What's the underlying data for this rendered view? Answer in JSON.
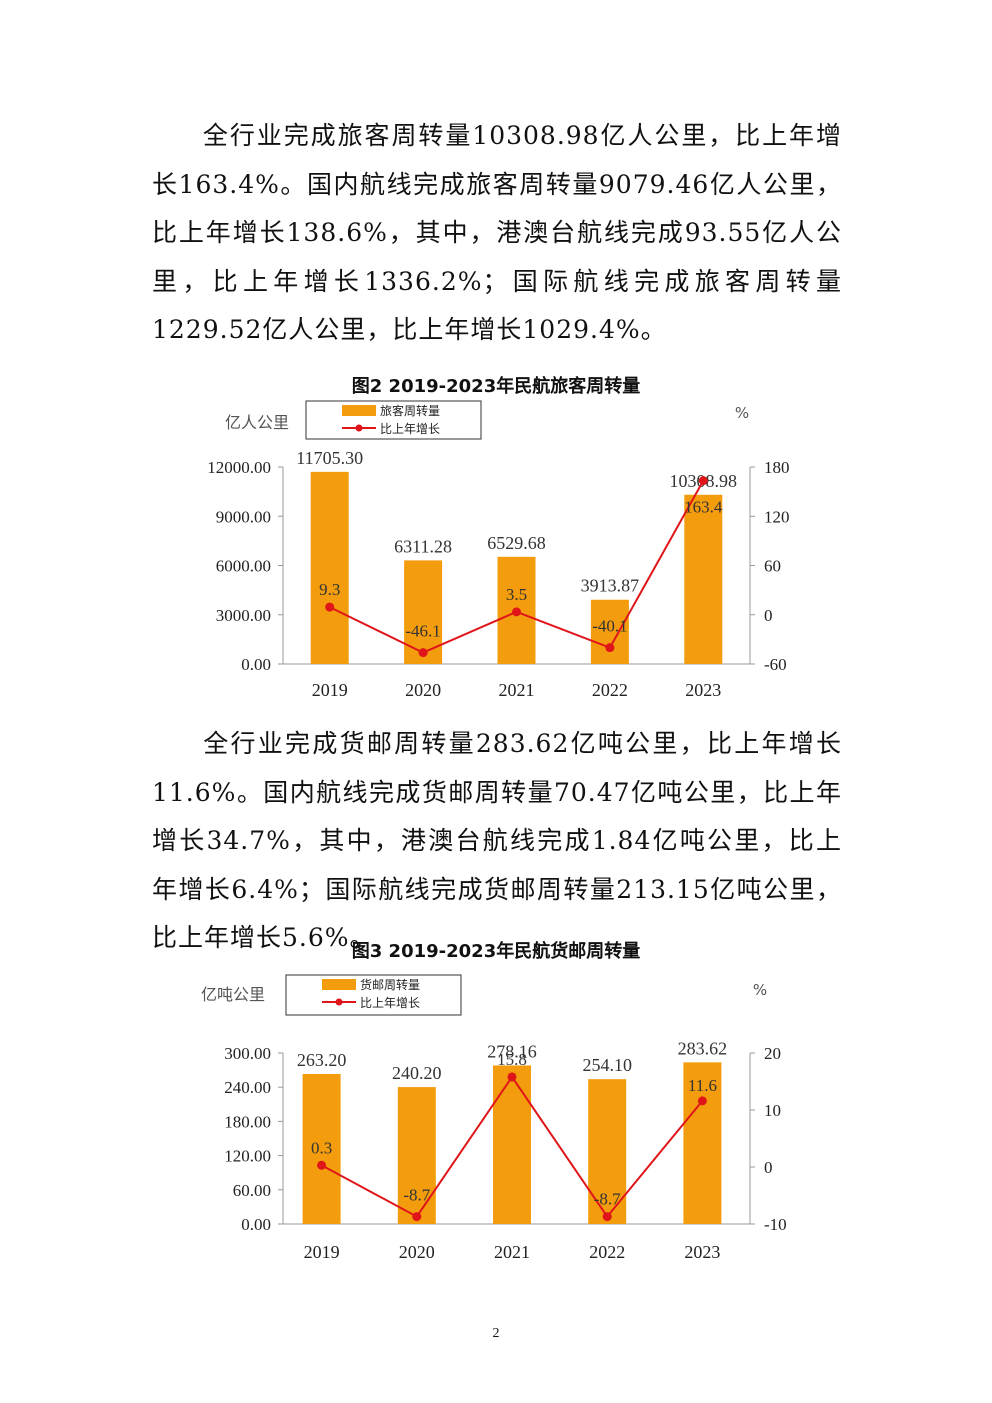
{
  "paragraphs": [
    "全行业完成旅客周转量10308.98亿人公里，比上年增长163.4%。国内航线完成旅客周转量9079.46亿人公里，比上年增长138.6%，其中，港澳台航线完成93.55亿人公里，比上年增长1336.2%；国际航线完成旅客周转量1229.52亿人公里，比上年增长1029.4%。",
    "全行业完成货邮周转量283.62亿吨公里，比上年增长11.6%。国内航线完成货邮周转量70.47亿吨公里，比上年增长34.7%，其中，港澳台航线完成1.84亿吨公里，比上年增长6.4%；国际航线完成货邮周转量213.15亿吨公里，比上年增长5.6%。"
  ],
  "page_number": "2",
  "colors": {
    "bar": "#F39C0D",
    "line": "#E0151A"
  },
  "chart_data": [
    {
      "type": "bar",
      "title": "图2  2019-2023年民航旅客周转量",
      "categories": [
        "2019",
        "2020",
        "2021",
        "2022",
        "2023"
      ],
      "ylabel": "亿人公里",
      "y2label": "%",
      "ylim": [
        0,
        12000
      ],
      "yticks": [
        "12000.00",
        "9000.00",
        "6000.00",
        "3000.00",
        "0.00"
      ],
      "y2lim": [
        -60,
        180
      ],
      "y2ticks": [
        "180",
        "120",
        "60",
        "0",
        "-60"
      ],
      "legend": [
        "旅客周转量",
        "比上年增长"
      ],
      "legend_position": "top-left",
      "series": [
        {
          "name": "旅客周转量",
          "kind": "bar",
          "axis": "left",
          "values": [
            11705.3,
            6311.28,
            6529.68,
            3913.87,
            10308.98
          ],
          "labels": [
            "11705.30",
            "6311.28",
            "6529.68",
            "3913.87",
            "10308.98"
          ]
        },
        {
          "name": "比上年增长",
          "kind": "line",
          "axis": "right",
          "values": [
            9.3,
            -46.1,
            3.5,
            -40.1,
            163.4
          ],
          "labels": [
            "9.3",
            "-46.1",
            "3.5",
            "-40.1",
            "163.4"
          ]
        }
      ]
    },
    {
      "type": "bar",
      "title": "图3 2019-2023年民航货邮周转量",
      "categories": [
        "2019",
        "2020",
        "2021",
        "2022",
        "2023"
      ],
      "ylabel": "亿吨公里",
      "y2label": "%",
      "ylim": [
        0,
        300
      ],
      "yticks": [
        "300.00",
        "240.00",
        "180.00",
        "120.00",
        "60.00",
        "0.00"
      ],
      "y2lim": [
        -10,
        20
      ],
      "y2ticks": [
        "20",
        "10",
        "0",
        "-10"
      ],
      "legend": [
        "货邮周转量",
        "比上年增长"
      ],
      "legend_position": "top-left",
      "series": [
        {
          "name": "货邮周转量",
          "kind": "bar",
          "axis": "left",
          "values": [
            263.2,
            240.2,
            278.16,
            254.1,
            283.62
          ],
          "labels": [
            "263.20",
            "240.20",
            "278.16",
            "254.10",
            "283.62"
          ]
        },
        {
          "name": "比上年增长",
          "kind": "line",
          "axis": "right",
          "values": [
            0.3,
            -8.7,
            15.8,
            -8.7,
            11.6
          ],
          "labels": [
            "0.3",
            "-8.7",
            "15.8",
            "-8.7",
            "11.6"
          ]
        }
      ]
    }
  ]
}
